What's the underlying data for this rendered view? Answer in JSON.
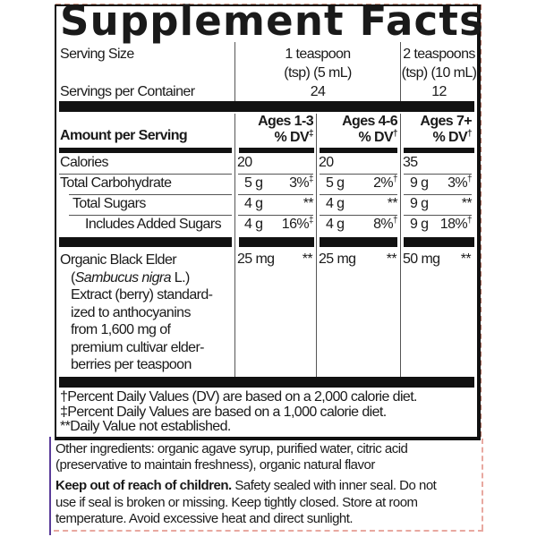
{
  "title": "Supplement Facts",
  "serving": {
    "label": "Serving Size",
    "col1_line1": "1 teaspoon",
    "col1_line2": "(tsp) (5 mL)",
    "col2_line1": "2 teaspoons",
    "col2_line2": "(tsp) (10 mL)",
    "per_container_label": "Servings per Container",
    "col1_count": "24",
    "col2_count": "12"
  },
  "header": {
    "amount_label": "Amount per Serving",
    "ages": [
      {
        "label": "Ages 1-3",
        "dv": "% DV",
        "mark": "‡"
      },
      {
        "label": "Ages 4-6",
        "dv": "% DV",
        "mark": "†"
      },
      {
        "label": "Ages 7+",
        "dv": "% DV",
        "mark": "†"
      }
    ]
  },
  "rows": [
    {
      "label": "Calories",
      "cells": [
        {
          "amt": "20",
          "dv": "",
          "mark": ""
        },
        {
          "amt": "20",
          "dv": "",
          "mark": ""
        },
        {
          "amt": "35",
          "dv": "",
          "mark": ""
        }
      ]
    },
    {
      "label": "Total Carbohydrate",
      "cells": [
        {
          "amt": "5 g",
          "dv": "3%",
          "mark": "‡"
        },
        {
          "amt": "5 g",
          "dv": "2%",
          "mark": "†"
        },
        {
          "amt": "9 g",
          "dv": "3%",
          "mark": "†"
        }
      ]
    },
    {
      "label": "Total Sugars",
      "cells": [
        {
          "amt": "4 g",
          "dv": "**",
          "mark": ""
        },
        {
          "amt": "4 g",
          "dv": "**",
          "mark": ""
        },
        {
          "amt": "9 g",
          "dv": "**",
          "mark": ""
        }
      ]
    },
    {
      "label": "Includes Added Sugars",
      "cells": [
        {
          "amt": "4 g",
          "dv": "16%",
          "mark": "‡"
        },
        {
          "amt": "4 g",
          "dv": "8%",
          "mark": "†"
        },
        {
          "amt": "9 g",
          "dv": "18%",
          "mark": "†"
        }
      ]
    }
  ],
  "elder": {
    "lines": [
      "Organic Black Elder",
      "(",
      "Sambucus nigra",
      " L.)",
      "Extract (berry) standard-",
      "ized to anthocyanins",
      "from 1,600 mg of",
      "premium cultivar elder-",
      "berries per teaspoon"
    ],
    "cells": [
      {
        "amt": "25 mg",
        "dv": "**"
      },
      {
        "amt": "25 mg",
        "dv": "**"
      },
      {
        "amt": "50 mg",
        "dv": "**"
      }
    ]
  },
  "footnotes": [
    "†Percent Daily Values (DV) are based on a 2,000 calorie diet.",
    "‡Percent Daily Values are based on a 1,000 calorie diet.",
    "**Daily Value not established."
  ],
  "other_ingredients": [
    "Other ingredients: organic agave syrup, purified water, citric acid",
    "(preservative to maintain freshness), organic natural flavor"
  ],
  "warning": {
    "bold": "Keep out of reach of children.",
    "lines": [
      " Safety sealed with inner seal. Do not",
      "use if seal is broken or missing. Keep tightly closed. Store at room",
      "temperature. Avoid excessive heat and direct sunlight."
    ]
  }
}
